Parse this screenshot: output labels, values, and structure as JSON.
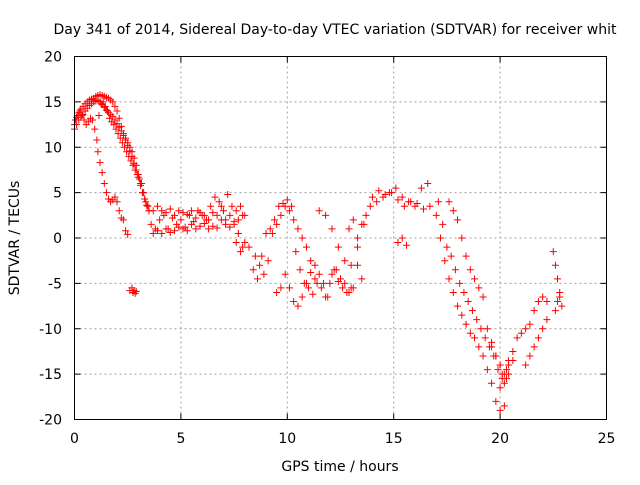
{
  "chart_data": {
    "type": "scatter",
    "title": "Day 341 of 2014, Sidereal Day-to-day VTEC variation (SDTVAR) for receiver whit",
    "xlabel": "GPS time / hours",
    "ylabel": "SDTVAR / TECUs",
    "xlim": [
      0,
      25
    ],
    "ylim": [
      -20,
      20
    ],
    "xticks": [
      "0",
      "5",
      "10",
      "15",
      "20",
      "25"
    ],
    "yticks": [
      "-20",
      "-15",
      "-10",
      "-5",
      "0",
      "5",
      "10",
      "15",
      "20"
    ],
    "grid": true,
    "marker": "+",
    "color": "#ff0000",
    "series": [
      {
        "name": "SDTVAR",
        "x": [
          0.0,
          0.1,
          0.2,
          0.3,
          0.4,
          0.5,
          0.6,
          0.7,
          0.8,
          0.9,
          1.0,
          1.1,
          1.2,
          1.3,
          1.4,
          1.5,
          1.6,
          1.7,
          1.8,
          1.9,
          2.0,
          2.1,
          2.2,
          2.3,
          2.4,
          2.5,
          2.6,
          2.7,
          2.8,
          2.9,
          3.0,
          3.1,
          3.2,
          3.3,
          3.4,
          3.5,
          0.0,
          0.1,
          0.2,
          0.3,
          0.4,
          0.5,
          0.6,
          0.7,
          0.8,
          0.9,
          1.0,
          1.1,
          1.2,
          1.3,
          1.4,
          1.5,
          1.6,
          1.7,
          1.8,
          1.9,
          2.0,
          2.1,
          2.2,
          2.3,
          2.4,
          2.5,
          2.6,
          2.7,
          2.8,
          2.9,
          3.0,
          3.1,
          3.2,
          3.3,
          3.4,
          3.5,
          0.05,
          0.15,
          0.25,
          0.35,
          0.45,
          0.55,
          0.65,
          0.75,
          0.85,
          0.95,
          1.05,
          1.15,
          1.25,
          1.35,
          1.45,
          1.55,
          1.65,
          1.75,
          1.85,
          1.95,
          2.05,
          2.15,
          2.25,
          2.35,
          2.45,
          2.55,
          2.65,
          2.75,
          2.85,
          2.95,
          3.05,
          3.15,
          3.25,
          3.35,
          3.45,
          1.1,
          1.2,
          1.3,
          1.4,
          1.5,
          1.6,
          1.7,
          1.8,
          1.9,
          2.0,
          2.1,
          2.2,
          2.3,
          2.4,
          2.5,
          2.6,
          2.7,
          2.75,
          2.8,
          2.85,
          2.9,
          3.6,
          3.8,
          4.0,
          4.2,
          4.4,
          4.6,
          4.8,
          5.0,
          5.2,
          5.4,
          5.6,
          5.8,
          6.0,
          6.2,
          6.4,
          6.6,
          6.8,
          7.0,
          7.2,
          7.4,
          7.6,
          7.8,
          8.0,
          3.7,
          3.9,
          4.1,
          4.3,
          4.5,
          4.7,
          4.9,
          5.1,
          5.3,
          5.5,
          5.7,
          5.9,
          6.1,
          6.3,
          6.5,
          6.7,
          6.9,
          7.1,
          7.3,
          7.5,
          7.7,
          7.9,
          3.7,
          3.9,
          4.1,
          4.3,
          4.5,
          4.7,
          4.9,
          5.1,
          5.3,
          5.5,
          5.7,
          5.9,
          6.1,
          6.3,
          6.5,
          6.7,
          6.9,
          7.1,
          7.3,
          7.5,
          7.7,
          7.9,
          7.6,
          7.8,
          8.0,
          8.2,
          8.4,
          8.6,
          8.8,
          9.0,
          9.2,
          9.4,
          9.6,
          9.8,
          10.0,
          10.2,
          10.4,
          10.6,
          10.8,
          11.0,
          11.2,
          11.4,
          11.6,
          11.8,
          12.0,
          12.2,
          12.4,
          12.6,
          12.8,
          13.0,
          8.5,
          8.7,
          8.9,
          9.1,
          9.3,
          9.5,
          9.7,
          9.9,
          10.1,
          10.3,
          10.5,
          10.7,
          10.9,
          11.1,
          11.3,
          11.5,
          11.7,
          11.9,
          12.1,
          12.3,
          12.5,
          12.7,
          12.9,
          13.1,
          13.3,
          13.5,
          9.5,
          9.7,
          9.9,
          10.1,
          10.3,
          10.5,
          10.7,
          10.9,
          11.1,
          11.3,
          11.5,
          11.8,
          12.1,
          12.4,
          12.7,
          13.0,
          13.3,
          13.6,
          13.9,
          14.2,
          14.5,
          14.8,
          15.1,
          15.4,
          15.7,
          16.0,
          16.3,
          16.6,
          12.9,
          13.1,
          13.3,
          13.5,
          13.7,
          14.0,
          14.3,
          14.6,
          14.9,
          15.2,
          15.5,
          15.8,
          16.1,
          16.4,
          16.7,
          15.2,
          15.4,
          15.6,
          17.0,
          17.2,
          17.4,
          17.6,
          17.8,
          18.0,
          18.2,
          18.4,
          18.6,
          18.8,
          19.0,
          19.2,
          19.4,
          19.6,
          19.8,
          20.0,
          20.2,
          20.4,
          20.6,
          17.1,
          17.3,
          17.5,
          17.7,
          17.9,
          18.1,
          18.3,
          18.5,
          18.7,
          18.9,
          19.1,
          19.3,
          19.5,
          19.7,
          19.9,
          20.1,
          20.3,
          17.6,
          17.8,
          18.0,
          18.2,
          18.4,
          18.6,
          18.8,
          19.0,
          19.2,
          19.4,
          19.6,
          19.8,
          20.0,
          19.6,
          19.8,
          20.0,
          20.1,
          20.2,
          20.3,
          20.4,
          20.0,
          20.2,
          20.4,
          20.6,
          20.8,
          21.0,
          21.2,
          21.4,
          21.6,
          21.8,
          22.0,
          22.2,
          21.2,
          21.4,
          21.6,
          21.8,
          22.0,
          22.2,
          22.5,
          22.6,
          22.7,
          22.8,
          22.9,
          22.6,
          22.7,
          22.8
        ],
        "y": [
          12.5,
          13.3,
          13.8,
          14.2,
          14.5,
          14.8,
          15.0,
          15.2,
          15.3,
          15.4,
          15.6,
          15.7,
          15.8,
          15.7,
          15.6,
          15.5,
          15.4,
          15.2,
          15.0,
          14.5,
          14.0,
          13.2,
          12.3,
          11.5,
          11.0,
          10.5,
          10.0,
          9.5,
          8.8,
          8.0,
          7.0,
          6.0,
          5.0,
          4.3,
          3.6,
          3.0,
          12.0,
          12.5,
          13.0,
          13.3,
          13.6,
          14.0,
          14.3,
          14.6,
          14.8,
          15.0,
          15.1,
          15.2,
          15.0,
          14.7,
          14.4,
          14.1,
          13.8,
          13.6,
          13.4,
          13.0,
          12.6,
          12.2,
          11.8,
          11.3,
          10.8,
          10.2,
          9.6,
          9.0,
          8.2,
          7.5,
          6.7,
          5.8,
          5.0,
          4.3,
          3.6,
          3.0,
          13.0,
          13.5,
          14.0,
          13.5,
          13.0,
          12.5,
          12.8,
          13.2,
          13.0,
          12.0,
          10.8,
          13.5,
          14.8,
          15.0,
          14.5,
          14.0,
          13.2,
          12.8,
          12.5,
          12.0,
          11.5,
          11.0,
          10.5,
          10.0,
          9.5,
          9.0,
          8.5,
          8.0,
          7.5,
          7.0,
          6.5,
          6.0,
          5.0,
          4.0,
          3.5,
          9.5,
          8.3,
          7.2,
          6.0,
          5.0,
          4.3,
          4.0,
          4.2,
          4.5,
          4.0,
          3.0,
          2.2,
          2.0,
          0.8,
          0.4,
          -5.8,
          -5.5,
          -6.0,
          -5.8,
          -6.1,
          -5.9,
          1.5,
          1.0,
          2.0,
          2.5,
          1.0,
          2.2,
          1.5,
          2.0,
          1.2,
          2.5,
          1.8,
          3.0,
          2.5,
          2.0,
          3.5,
          4.5,
          4.0,
          3.0,
          4.8,
          3.5,
          3.0,
          3.5,
          2.5,
          0.5,
          0.8,
          0.5,
          1.0,
          0.6,
          0.8,
          1.2,
          1.0,
          0.8,
          1.5,
          1.0,
          1.3,
          1.6,
          1.0,
          1.3,
          1.1,
          2.0,
          1.5,
          1.2,
          1.8,
          2.0,
          2.5,
          3.0,
          3.5,
          3.0,
          2.8,
          3.2,
          2.5,
          3.0,
          2.8,
          2.6,
          3.0,
          2.2,
          2.8,
          2.5,
          2.0,
          2.8,
          2.5,
          3.5,
          2.0,
          2.5,
          1.5,
          0.5,
          -1.0,
          -0.5,
          -1.5,
          -0.5,
          -1.0,
          -3.5,
          -4.5,
          -2.0,
          0.5,
          1.0,
          2.0,
          3.5,
          3.8,
          4.2,
          3.5,
          -1.5,
          -3.5,
          -5.0,
          -5.5,
          -6.2,
          -5.0,
          -5.5,
          -6.5,
          -5.0,
          -3.5,
          -4.8,
          -5.5,
          -6.0,
          -5.5,
          -2.0,
          -3.0,
          -4.0,
          -2.5,
          0.5,
          1.5,
          2.5,
          3.5,
          3.0,
          2.0,
          1.0,
          0.0,
          -1.0,
          -2.5,
          -3.0,
          -4.0,
          -5.0,
          -6.5,
          -4.0,
          -3.5,
          -4.5,
          -5.0,
          -6.0,
          -5.5,
          -3.0,
          -4.5,
          -6.0,
          -5.5,
          -4.0,
          -5.5,
          -7.0,
          -7.5,
          -6.5,
          -5.0,
          -3.8,
          -4.5,
          3.0,
          2.5,
          1.0,
          -1.0,
          -2.5,
          -3.0,
          -1.0,
          1.5,
          3.5,
          4.0,
          4.5,
          5.0,
          5.5,
          4.5,
          4.0,
          3.5,
          5.5,
          6.0,
          1.0,
          2.0,
          0.0,
          1.5,
          2.5,
          4.5,
          5.2,
          4.8,
          5.0,
          4.2,
          3.5,
          4.0,
          3.8,
          3.2,
          3.5,
          -0.5,
          0.0,
          -0.8,
          2.5,
          0.0,
          -2.5,
          -4.5,
          -6.0,
          -7.5,
          -8.5,
          -9.5,
          -10.5,
          -11.0,
          -12.0,
          -13.0,
          -14.5,
          -16.0,
          -18.0,
          -19.0,
          -18.5,
          -14.0,
          -13.5,
          4.0,
          1.5,
          -1.0,
          -2.0,
          -3.5,
          -5.0,
          -6.0,
          -7.0,
          -8.0,
          -9.0,
          -10.0,
          -11.0,
          -12.0,
          -13.0,
          -14.5,
          -15.0,
          -15.5,
          4.0,
          3.0,
          2.0,
          0.0,
          -2.0,
          -3.5,
          -4.5,
          -5.5,
          -6.5,
          -10.0,
          -11.5,
          -13.0,
          -14.0,
          -12.0,
          -13.0,
          -14.0,
          -15.5,
          -16.0,
          -14.5,
          -15.0,
          -16.5,
          -15.0,
          -13.5,
          -12.5,
          -11.0,
          -10.5,
          -10.0,
          -9.5,
          -8.0,
          -7.0,
          -6.5,
          -7.0,
          -14.0,
          -13.0,
          -12.0,
          -11.0,
          -10.0,
          -9.0,
          -1.5,
          -3.0,
          -4.5,
          -6.0,
          -7.5,
          -8.0,
          -7.0,
          -6.5
        ]
      }
    ]
  }
}
